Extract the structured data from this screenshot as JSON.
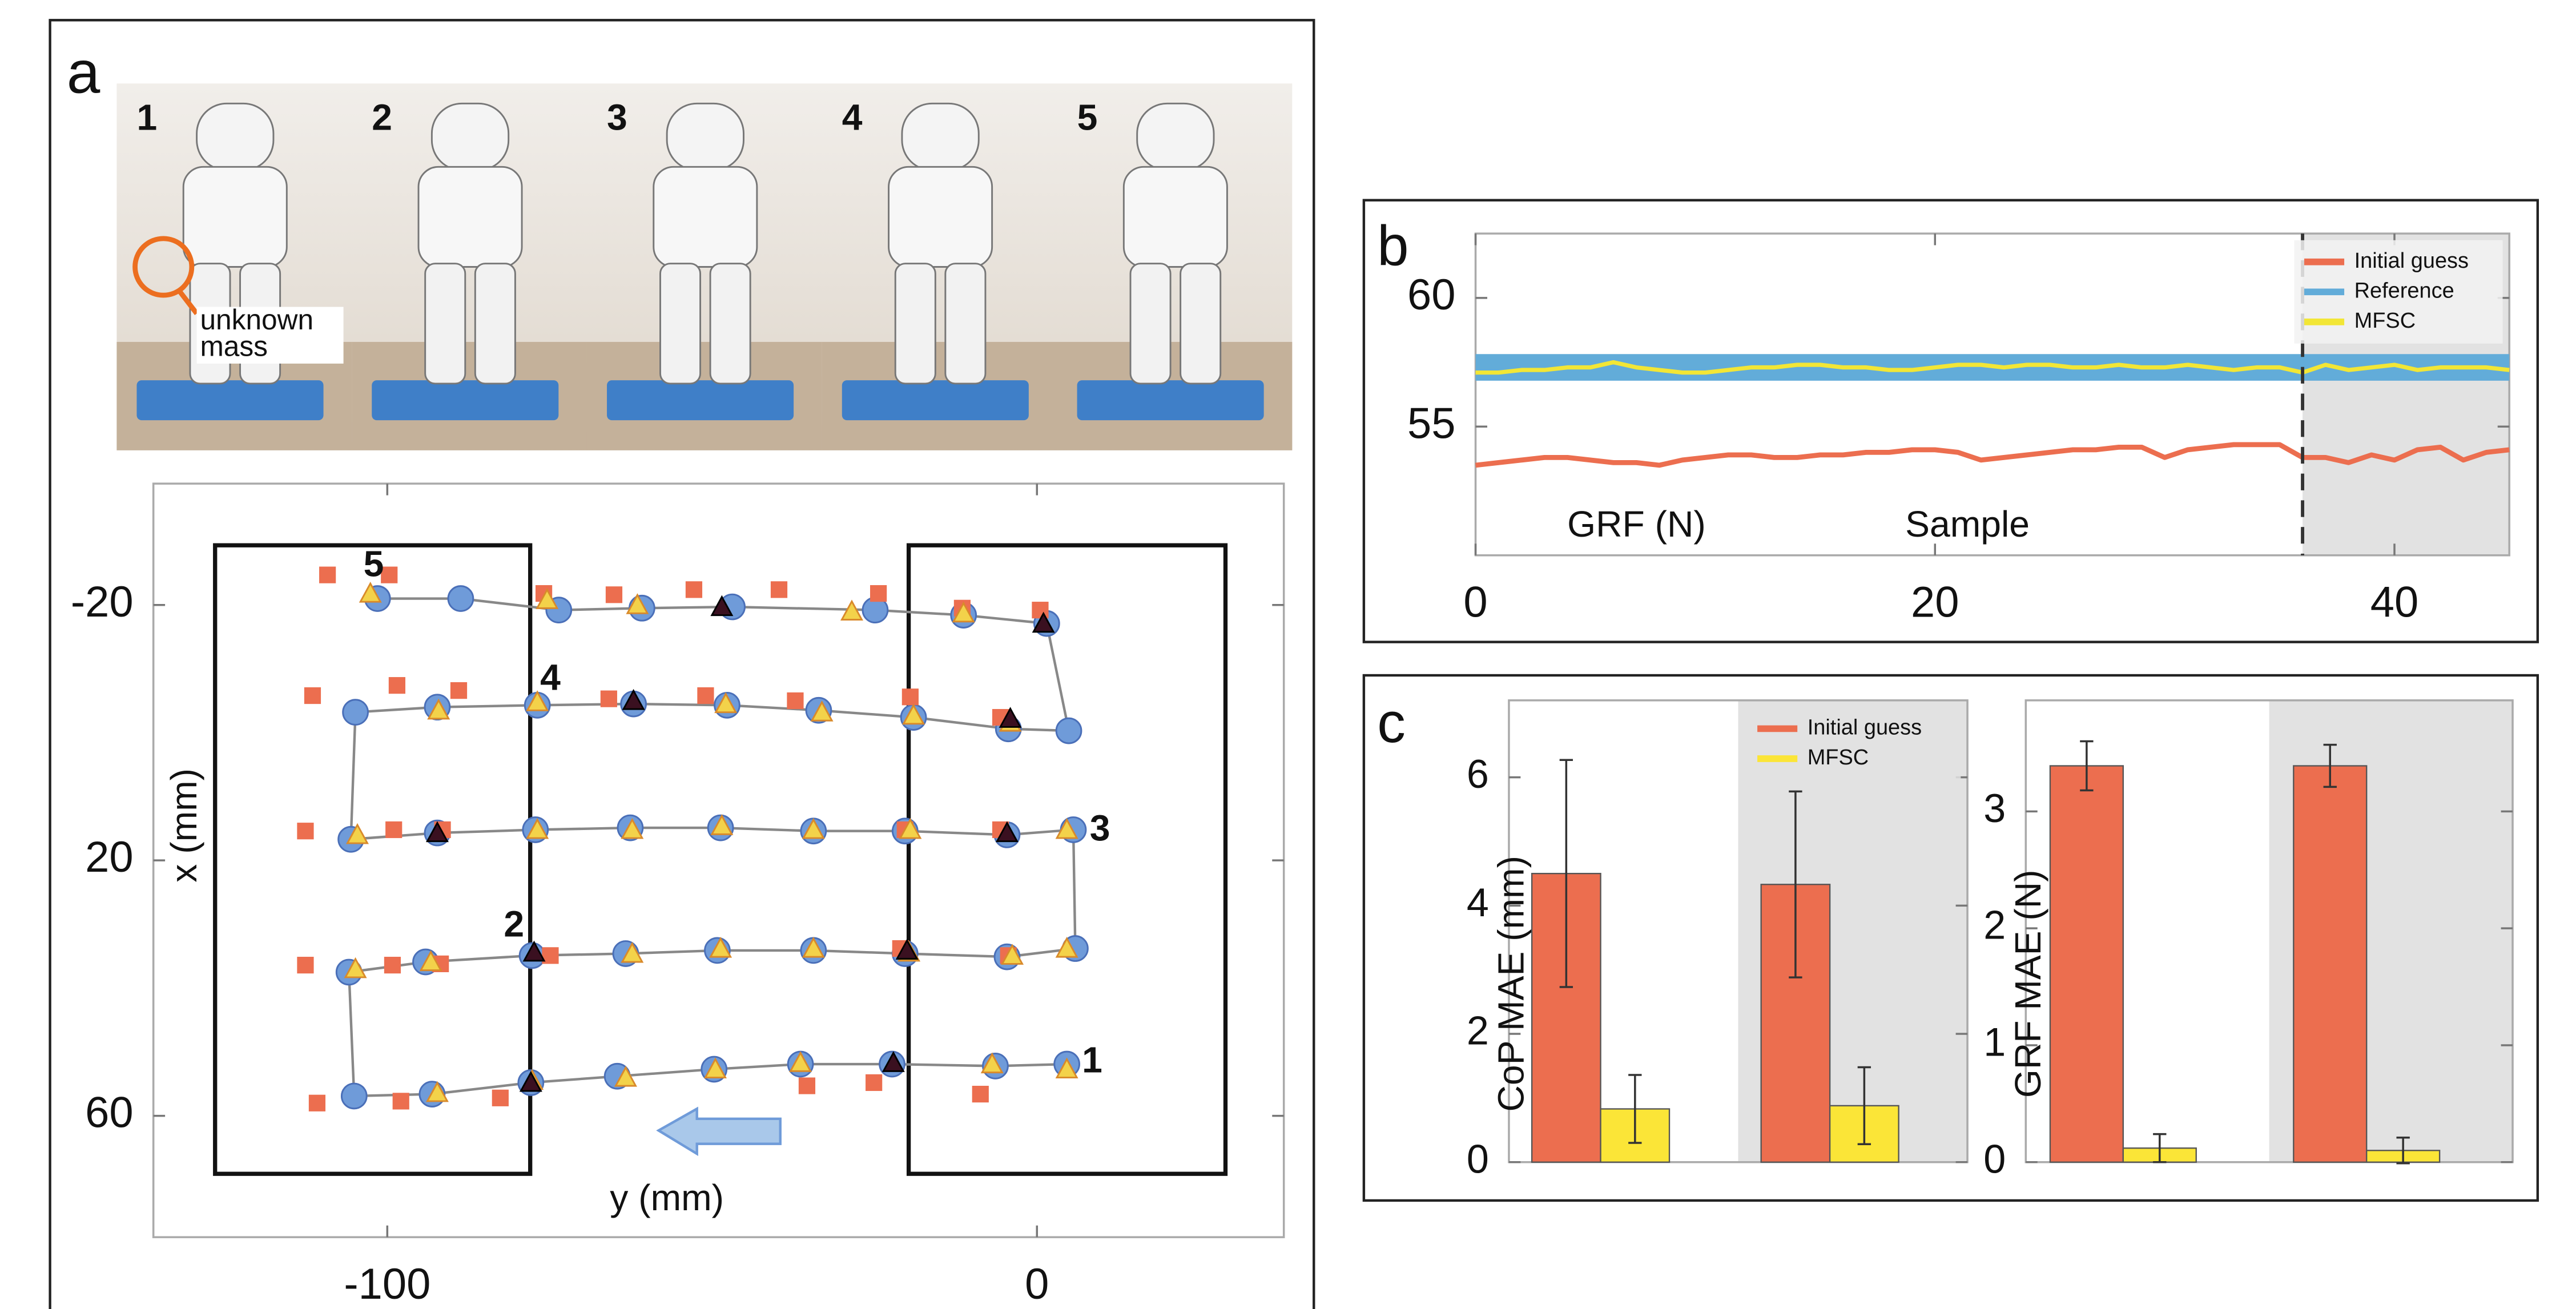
{
  "panel_labels": [
    "a",
    "b",
    "c"
  ],
  "photos": {
    "labels": [
      "1",
      "2",
      "3",
      "4",
      "5"
    ],
    "annotation": [
      "unknown",
      "mass"
    ]
  },
  "chart_data": [
    {
      "type": "scatter",
      "xlabel": "y (mm)",
      "ylabel": "x (mm)",
      "xlim": [
        -136,
        38
      ],
      "ylim": [
        79,
        -39
      ],
      "xticks": [
        -100,
        0
      ],
      "yticks": [
        -20,
        20,
        60
      ],
      "grid": false,
      "series": [
        {
          "color": "#6f9bd9",
          "marker": "circle",
          "line": true,
          "x": [
            4.6,
            -6.4,
            -22.3,
            -36.4,
            -49.7,
            -64.6,
            -77.9,
            -93.1,
            -105.1,
            -105.9,
            -94.1,
            -77.7,
            -63.3,
            -49.2,
            -34.4,
            -20.3,
            -4.6,
            5.9,
            5.6,
            -4.6,
            -20.3,
            -34.4,
            -48.7,
            -62.6,
            -77.2,
            -92.3,
            -105.6,
            -104.9,
            -92.3,
            -76.9,
            -62.1,
            -47.7,
            -33.6,
            -19.0,
            -4.4,
            4.9,
            1.5,
            -11.3,
            -24.9,
            -46.9,
            -60.8,
            -73.6,
            -88.7,
            -101.5
          ],
          "values": [
            51.9,
            52.2,
            51.9,
            51.9,
            52.7,
            53.8,
            54.8,
            56.6,
            56.9,
            37.5,
            35.9,
            34.9,
            34.6,
            34.1,
            34.1,
            34.6,
            35.1,
            33.8,
            15.2,
            16.0,
            15.4,
            15.4,
            14.9,
            14.9,
            15.2,
            15.7,
            16.7,
            -3.2,
            -4.0,
            -4.3,
            -4.5,
            -4.3,
            -3.5,
            -2.4,
            -0.6,
            -0.3,
            -17.1,
            -18.4,
            -19.2,
            -19.7,
            -19.5,
            -19.2,
            -21.0,
            -21.0
          ]
        },
        {
          "color": "#ec6e4f",
          "marker": "square",
          "x": [
            -109.2,
            -99.7,
            -75.9,
            -65.1,
            -52.8,
            -39.7,
            -24.4,
            -11.5,
            0.5,
            -111.5,
            -98.5,
            -89.0,
            -65.9,
            -51.0,
            -37.2,
            -19.5,
            -5.6,
            -112.6,
            -99.0,
            -91.5,
            -20.3,
            -5.6,
            -112.6,
            -99.2,
            -91.8,
            -74.9,
            -21.0,
            -4.4,
            -110.8,
            -97.9,
            -82.6,
            -35.4,
            -25.1,
            -8.7
          ],
          "values": [
            -24.7,
            -24.7,
            -21.8,
            -21.6,
            -22.4,
            -22.4,
            -21.8,
            -19.5,
            -19.2,
            -5.8,
            -7.4,
            -6.6,
            -5.3,
            -5.8,
            -5.0,
            -5.6,
            -2.4,
            15.4,
            15.2,
            15.2,
            15.2,
            15.2,
            36.4,
            36.4,
            36.2,
            34.9,
            33.8,
            34.9,
            58.0,
            57.7,
            57.2,
            55.3,
            54.8,
            56.6
          ]
        },
        {
          "color": "#f3d24a",
          "marker": "triangle",
          "x": [
            -102.6,
            -75.4,
            -61.5,
            -28.5,
            -11.3,
            -92.1,
            -76.9,
            -47.9,
            -33.1,
            -19.0,
            -4.1,
            -104.6,
            -76.9,
            -62.3,
            -48.5,
            -34.4,
            -19.5,
            4.6,
            -104.9,
            -93.3,
            -62.3,
            -48.7,
            -34.4,
            -19.7,
            -3.8,
            4.6,
            -92.3,
            -77.7,
            -63.3,
            -49.5,
            -36.4,
            -6.9,
            4.6
          ],
          "values": [
            -21.8,
            -20.8,
            -20.0,
            -19.0,
            -18.7,
            -3.5,
            -4.8,
            -4.5,
            -3.2,
            -2.7,
            -1.6,
            16.0,
            15.2,
            15.2,
            14.6,
            15.2,
            15.2,
            15.2,
            37.0,
            35.9,
            34.6,
            33.8,
            33.8,
            34.4,
            34.9,
            33.8,
            56.4,
            54.5,
            54.0,
            52.7,
            51.7,
            51.9,
            52.7
          ]
        },
        {
          "color": "#3a1020",
          "marker": "triangle",
          "x": [
            -48.5,
            1.0,
            -62.1,
            -4.1,
            -92.3,
            -4.6,
            -77.4,
            -20.0,
            -77.9,
            -22.1
          ],
          "values": [
            -19.7,
            -17.1,
            -5.0,
            -2.2,
            15.7,
            15.7,
            34.4,
            34.1,
            54.8,
            51.7
          ]
        }
      ],
      "annotations": [
        {
          "text": "1",
          "x": 8.5,
          "y": 51.7
        },
        {
          "text": "2",
          "x": -80.5,
          "y": 30.4
        },
        {
          "text": "3",
          "x": 9.7,
          "y": 15.4
        },
        {
          "text": "4",
          "x": -74.9,
          "y": -8.2
        },
        {
          "text": "5",
          "x": -102.1,
          "y": -26.0
        }
      ]
    },
    {
      "type": "line",
      "xlabel": "Sample",
      "ylabel": "GRF (N)",
      "xlim": [
        0,
        45
      ],
      "ylim": [
        50,
        62.5
      ],
      "xticks": [
        0,
        20,
        40
      ],
      "yticks": [
        55,
        60
      ],
      "grid": false,
      "legend": "upper right",
      "vline": 36,
      "shaded_xrange": [
        36,
        45
      ],
      "x": [
        0,
        1,
        2,
        3,
        4,
        5,
        6,
        7,
        8,
        9,
        10,
        11,
        12,
        13,
        14,
        15,
        16,
        17,
        18,
        19,
        20,
        21,
        22,
        23,
        24,
        25,
        26,
        27,
        28,
        29,
        30,
        31,
        32,
        33,
        34,
        35,
        36,
        37,
        38,
        39,
        40,
        41,
        42,
        43,
        44,
        45
      ],
      "series": [
        {
          "name": "Initial guess",
          "color": "#ec6e4f",
          "linewidth": 3,
          "values": [
            53.5,
            53.6,
            53.7,
            53.8,
            53.8,
            53.7,
            53.6,
            53.6,
            53.5,
            53.7,
            53.8,
            53.9,
            53.9,
            53.8,
            53.8,
            53.9,
            53.9,
            54.0,
            54.0,
            54.1,
            54.1,
            54.0,
            53.7,
            53.8,
            53.9,
            54.0,
            54.1,
            54.1,
            54.2,
            54.2,
            53.8,
            54.1,
            54.2,
            54.3,
            54.3,
            54.3,
            53.8,
            53.8,
            53.6,
            53.9,
            53.7,
            54.1,
            54.2,
            53.7,
            54.0,
            54.1
          ]
        },
        {
          "name": "Reference",
          "color": "#62acd9",
          "linewidth": 16,
          "values": [
            57.3,
            57.3,
            57.3,
            57.3,
            57.3,
            57.3,
            57.3,
            57.3,
            57.3,
            57.3,
            57.3,
            57.3,
            57.3,
            57.3,
            57.3,
            57.3,
            57.3,
            57.3,
            57.3,
            57.3,
            57.3,
            57.3,
            57.3,
            57.3,
            57.3,
            57.3,
            57.3,
            57.3,
            57.3,
            57.3,
            57.3,
            57.3,
            57.3,
            57.3,
            57.3,
            57.3,
            57.3,
            57.3,
            57.3,
            57.3,
            57.3,
            57.3,
            57.3,
            57.3,
            57.3,
            57.3
          ]
        },
        {
          "name": "MFSC",
          "color": "#f2e636",
          "linewidth": 2.5,
          "values": [
            57.1,
            57.1,
            57.2,
            57.2,
            57.3,
            57.3,
            57.5,
            57.3,
            57.2,
            57.1,
            57.1,
            57.2,
            57.3,
            57.3,
            57.4,
            57.4,
            57.3,
            57.3,
            57.2,
            57.2,
            57.3,
            57.4,
            57.4,
            57.3,
            57.4,
            57.4,
            57.3,
            57.3,
            57.4,
            57.3,
            57.3,
            57.4,
            57.3,
            57.2,
            57.3,
            57.3,
            57.1,
            57.4,
            57.2,
            57.3,
            57.4,
            57.2,
            57.3,
            57.3,
            57.3,
            57.2
          ]
        }
      ]
    },
    {
      "type": "bar",
      "ylabel": "CoP MAE (mm)",
      "categories": [
        null,
        null
      ],
      "ylim": [
        0,
        7.2
      ],
      "yticks": [
        0,
        2,
        4,
        6
      ],
      "grid": false,
      "legend": "upper right",
      "series": [
        {
          "name": "Initial guess",
          "color": "#ec6e4f",
          "values": [
            4.5,
            4.33
          ],
          "errors": [
            1.77,
            1.45
          ]
        },
        {
          "name": "MFSC",
          "color": "#fbe537",
          "values": [
            0.83,
            0.88
          ],
          "errors": [
            0.53,
            0.6
          ]
        }
      ]
    },
    {
      "type": "bar",
      "ylabel": "GRF MAE (N)",
      "categories": [
        null,
        null
      ],
      "ylim": [
        0,
        3.95
      ],
      "yticks": [
        0,
        1,
        2,
        3
      ],
      "grid": false,
      "series": [
        {
          "color": "#ec6e4f",
          "values": [
            3.39,
            3.39
          ],
          "errors": [
            0.21,
            0.18
          ]
        },
        {
          "color": "#fbe537",
          "values": [
            0.12,
            0.1
          ],
          "errors": [
            0.12,
            0.11
          ]
        }
      ]
    }
  ]
}
